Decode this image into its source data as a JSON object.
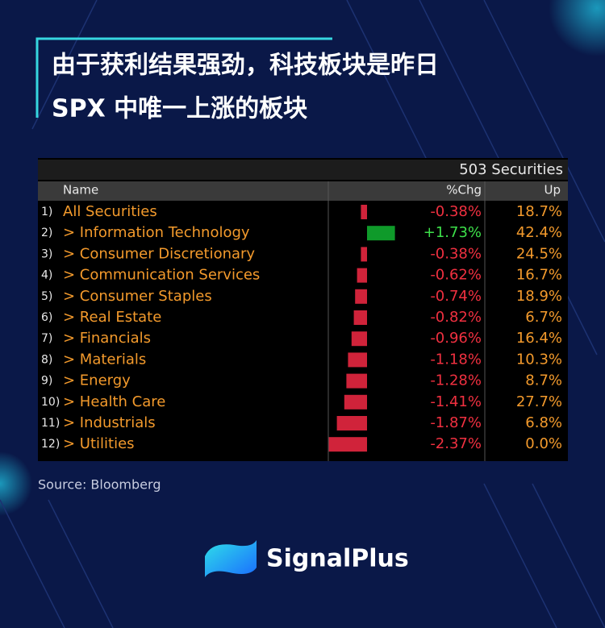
{
  "header": {
    "title_lines": [
      "由于获利结果强劲，科技板块是昨日",
      "SPX 中唯一上涨的板块"
    ]
  },
  "table": {
    "securities_label": "503 Securities",
    "columns": [
      "Name",
      "%Chg",
      "Up"
    ],
    "rows": [
      {
        "index": "1)",
        "name": "All Securities",
        "chg": -0.38,
        "chg_label": "-0.38%",
        "up": "18.7%"
      },
      {
        "index": "2)",
        "name": "> Information Technology",
        "chg": 1.73,
        "chg_label": "+1.73%",
        "up": "42.4%"
      },
      {
        "index": "3)",
        "name": "> Consumer Discretionary",
        "chg": -0.38,
        "chg_label": "-0.38%",
        "up": "24.5%"
      },
      {
        "index": "4)",
        "name": "> Communication Services",
        "chg": -0.62,
        "chg_label": "-0.62%",
        "up": "16.7%"
      },
      {
        "index": "5)",
        "name": "> Consumer Staples",
        "chg": -0.74,
        "chg_label": "-0.74%",
        "up": "18.9%"
      },
      {
        "index": "6)",
        "name": "> Real Estate",
        "chg": -0.82,
        "chg_label": "-0.82%",
        "up": "6.7%"
      },
      {
        "index": "7)",
        "name": "> Financials",
        "chg": -0.96,
        "chg_label": "-0.96%",
        "up": "16.4%"
      },
      {
        "index": "8)",
        "name": "> Materials",
        "chg": -1.18,
        "chg_label": "-1.18%",
        "up": "10.3%"
      },
      {
        "index": "9)",
        "name": "> Energy",
        "chg": -1.28,
        "chg_label": "-1.28%",
        "up": "8.7%"
      },
      {
        "index": "10)",
        "name": "> Health Care",
        "chg": -1.41,
        "chg_label": "-1.41%",
        "up": "27.7%"
      },
      {
        "index": "11)",
        "name": "> Industrials",
        "chg": -1.87,
        "chg_label": "-1.87%",
        "up": "6.8%"
      },
      {
        "index": "12)",
        "name": "> Utilities",
        "chg": -2.37,
        "chg_label": "-2.37%",
        "up": "0.0%"
      }
    ]
  },
  "source": "Source: Bloomberg",
  "brand": "SignalPlus"
}
